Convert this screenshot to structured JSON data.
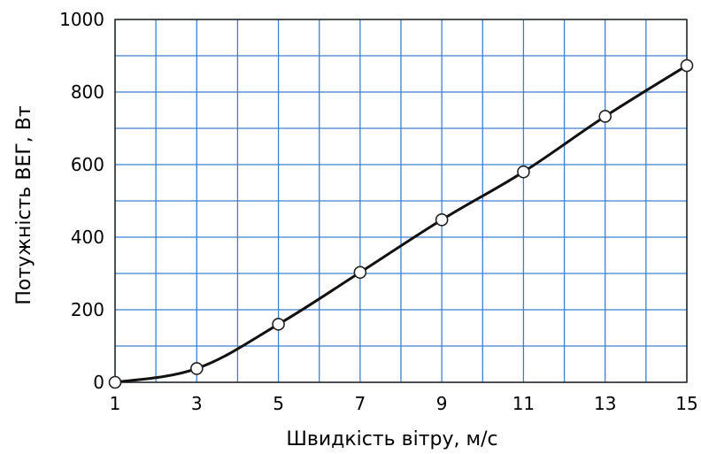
{
  "chart_data": {
    "type": "line",
    "title": "",
    "xlabel": "Швидкість вітру, м/с",
    "ylabel": "Потужність ВЕГ, Вт",
    "xlim": [
      1,
      15
    ],
    "ylim": [
      0,
      1000
    ],
    "x_ticks": [
      1,
      3,
      5,
      7,
      9,
      11,
      13,
      15
    ],
    "y_ticks": [
      0,
      200,
      400,
      600,
      800,
      1000
    ],
    "x_gridlines": [
      1,
      2,
      3,
      4,
      5,
      6,
      7,
      8,
      9,
      10,
      11,
      12,
      13,
      14,
      15
    ],
    "y_gridlines": [
      0,
      100,
      200,
      300,
      400,
      500,
      600,
      700,
      800,
      900,
      1000
    ],
    "grid": true,
    "grid_color": "#3d7fd0",
    "series": [
      {
        "line_color": "#111111",
        "marker": "open-circle",
        "points": [
          {
            "x": 1,
            "y": 0
          },
          {
            "x": 3,
            "y": 38
          },
          {
            "x": 5,
            "y": 160
          },
          {
            "x": 7,
            "y": 303
          },
          {
            "x": 9,
            "y": 448
          },
          {
            "x": 11,
            "y": 580
          },
          {
            "x": 13,
            "y": 733
          },
          {
            "x": 15,
            "y": 873
          }
        ]
      }
    ]
  }
}
